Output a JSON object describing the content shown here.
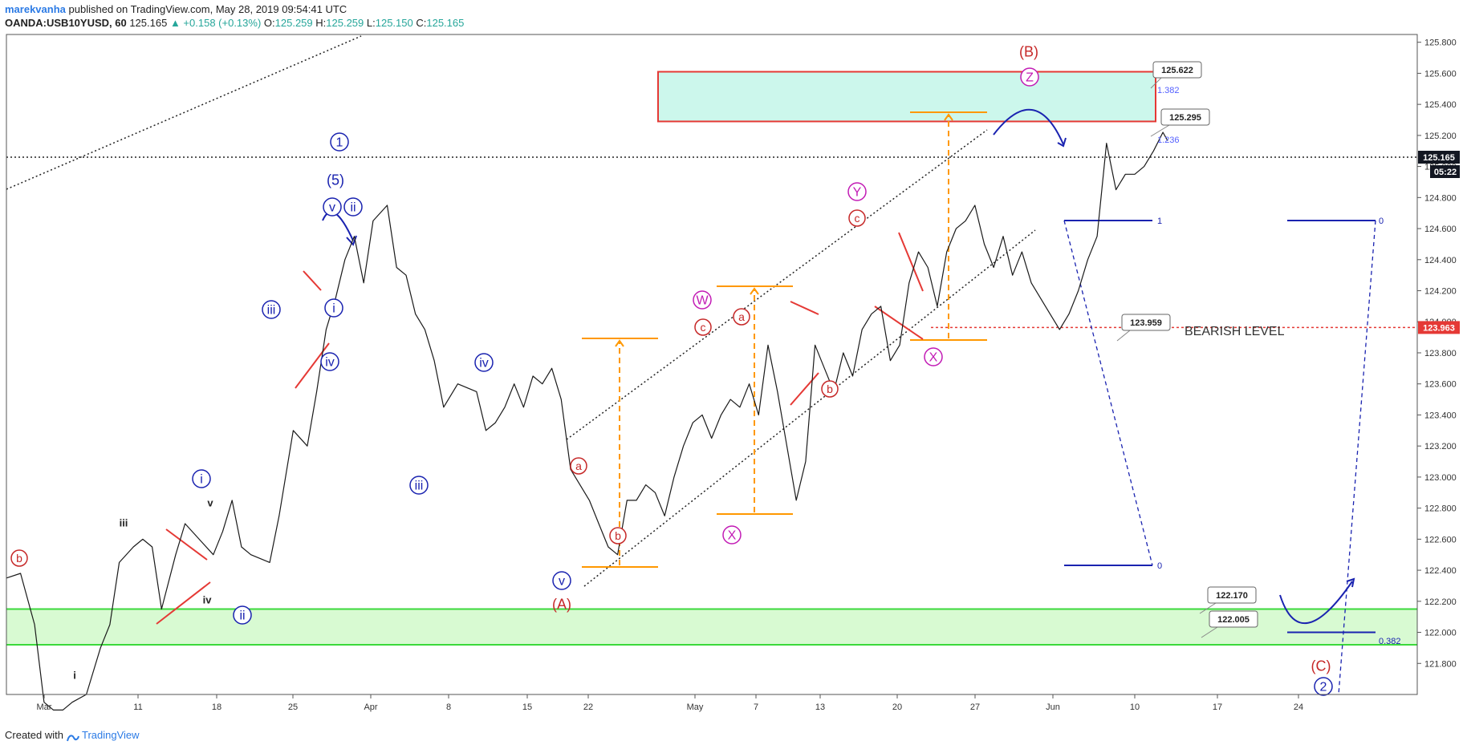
{
  "header": {
    "author": "marekvanha",
    "published": "published on TradingView.com, May 28, 2019 09:54:41 UTC",
    "symbol": "OANDA:USB10YUSD, 60",
    "last": "125.165",
    "change": "▲ +0.158 (+0.13%)",
    "o_label": "O:",
    "o": "125.259",
    "h_label": "H:",
    "h": "125.259",
    "l_label": "L:",
    "l": "125.150",
    "c_label": "C:",
    "c": "125.165"
  },
  "footer": {
    "created": "Created with",
    "brand": "TradingView"
  },
  "colors": {
    "bearish": "#e53935",
    "bullish": "#26a69a",
    "wave_blue": "#1a23b0",
    "wave_red": "#c62828",
    "wave_magenta": "#c21bb5",
    "fib_orange": "#ff9800",
    "target_zone": "#ccf7ec",
    "support_zone": "#d8fad2",
    "zone_red": "#e53935",
    "zone_green": "#3bd93b"
  },
  "chart_data": {
    "type": "line",
    "series": [
      {
        "x_unit": "trading day index (hourly bars, sampled)",
        "values": [
          [
            0,
            122.35
          ],
          [
            1.5,
            122.38
          ],
          [
            3,
            122.05
          ],
          [
            4,
            121.55
          ],
          [
            5,
            121.5
          ],
          [
            6,
            121.5
          ],
          [
            7,
            121.55
          ],
          [
            8.5,
            121.6
          ],
          [
            10,
            121.9
          ],
          [
            11,
            122.05
          ],
          [
            12,
            122.45
          ],
          [
            13.5,
            122.55
          ],
          [
            14.5,
            122.6
          ],
          [
            15.5,
            122.55
          ],
          [
            16.5,
            122.15
          ],
          [
            18,
            122.5
          ],
          [
            19,
            122.7
          ],
          [
            20.5,
            122.6
          ],
          [
            22,
            122.5
          ],
          [
            23,
            122.65
          ],
          [
            24,
            122.85
          ],
          [
            25,
            122.55
          ],
          [
            26,
            122.5
          ],
          [
            28,
            122.45
          ],
          [
            29,
            122.75
          ],
          [
            30.5,
            123.3
          ],
          [
            32,
            123.2
          ],
          [
            33,
            123.55
          ],
          [
            34,
            123.95
          ],
          [
            35,
            124.15
          ],
          [
            36,
            124.4
          ],
          [
            37,
            124.55
          ],
          [
            38,
            124.25
          ],
          [
            39,
            124.65
          ],
          [
            40.5,
            124.75
          ],
          [
            41.5,
            124.35
          ],
          [
            42.5,
            124.3
          ],
          [
            43.5,
            124.05
          ],
          [
            44.5,
            123.95
          ],
          [
            45.5,
            123.75
          ],
          [
            46.5,
            123.45
          ],
          [
            48,
            123.6
          ],
          [
            50,
            123.55
          ],
          [
            51,
            123.3
          ],
          [
            52,
            123.35
          ],
          [
            53,
            123.45
          ],
          [
            54,
            123.6
          ],
          [
            55,
            123.45
          ],
          [
            56,
            123.65
          ],
          [
            57,
            123.6
          ],
          [
            58,
            123.7
          ],
          [
            59,
            123.5
          ],
          [
            60,
            123.05
          ],
          [
            61,
            122.95
          ],
          [
            62,
            122.85
          ],
          [
            63,
            122.7
          ],
          [
            64,
            122.55
          ],
          [
            65,
            122.5
          ],
          [
            66,
            122.85
          ],
          [
            67,
            122.85
          ],
          [
            68,
            122.95
          ],
          [
            69,
            122.9
          ],
          [
            70,
            122.75
          ],
          [
            71,
            123.0
          ],
          [
            72,
            123.2
          ],
          [
            73,
            123.35
          ],
          [
            74,
            123.4
          ],
          [
            75,
            123.25
          ],
          [
            76,
            123.4
          ],
          [
            77,
            123.5
          ],
          [
            78,
            123.45
          ],
          [
            79,
            123.6
          ],
          [
            80,
            123.4
          ],
          [
            81,
            123.85
          ],
          [
            82,
            123.55
          ],
          [
            83,
            123.2
          ],
          [
            84,
            122.85
          ],
          [
            85,
            123.1
          ],
          [
            86,
            123.85
          ],
          [
            87,
            123.7
          ],
          [
            88,
            123.55
          ],
          [
            89,
            123.8
          ],
          [
            90,
            123.65
          ],
          [
            91,
            123.95
          ],
          [
            92,
            124.05
          ],
          [
            93,
            124.1
          ],
          [
            94,
            123.75
          ],
          [
            95,
            123.85
          ],
          [
            96,
            124.25
          ],
          [
            97,
            124.45
          ],
          [
            98,
            124.35
          ],
          [
            99,
            124.1
          ],
          [
            100,
            124.45
          ],
          [
            101,
            124.6
          ],
          [
            102,
            124.65
          ],
          [
            103,
            124.75
          ],
          [
            104,
            124.5
          ],
          [
            105,
            124.35
          ],
          [
            106,
            124.55
          ],
          [
            107,
            124.3
          ],
          [
            108,
            124.45
          ],
          [
            109,
            124.25
          ],
          [
            110,
            124.15
          ],
          [
            111,
            124.05
          ],
          [
            112,
            123.95
          ],
          [
            113,
            124.05
          ],
          [
            114,
            124.2
          ],
          [
            115,
            124.4
          ],
          [
            116,
            124.55
          ],
          [
            117,
            125.15
          ],
          [
            118,
            124.85
          ],
          [
            119,
            124.95
          ],
          [
            120,
            124.95
          ],
          [
            121,
            125.0
          ],
          [
            122,
            125.1
          ],
          [
            123,
            125.22
          ],
          [
            123.5,
            125.165
          ]
        ]
      }
    ],
    "ylim": [
      121.6,
      125.85
    ],
    "y_ticks": [
      "125.800",
      "125.600",
      "125.400",
      "125.200",
      "125.000",
      "124.800",
      "124.600",
      "124.400",
      "124.200",
      "124.000",
      "123.800",
      "123.600",
      "123.400",
      "123.200",
      "123.000",
      "122.800",
      "122.600",
      "122.400",
      "122.200",
      "122.000",
      "121.800"
    ],
    "x_ticks": [
      "Mar",
      "11",
      "18",
      "25",
      "Apr",
      "8",
      "15",
      "22",
      "May",
      "7",
      "13",
      "20",
      "27",
      "Jun",
      "10",
      "17",
      "24"
    ],
    "price_tag": {
      "value": "125.165",
      "time": "05:22"
    },
    "bearish_tag": "123.963",
    "bearish_label": "BEARISH LEVEL",
    "callouts": [
      {
        "text": "125.622"
      },
      {
        "text": "125.295"
      },
      {
        "text": "123.959"
      },
      {
        "text": "122.170"
      },
      {
        "text": "122.005"
      }
    ],
    "fib_labels": [
      {
        "text": "1.382"
      },
      {
        "text": "1.236"
      },
      {
        "text": "1"
      },
      {
        "text": "0"
      },
      {
        "text": "0"
      },
      {
        "text": "0"
      },
      {
        "text": "0.382"
      }
    ],
    "wave_labels": [
      {
        "text": "1",
        "style": "circle-blue"
      },
      {
        "text": "(5)",
        "style": "plain-blue"
      },
      {
        "text": "v",
        "style": "circle-blue"
      },
      {
        "text": "ii",
        "style": "circle-blue"
      },
      {
        "text": "iii",
        "style": "circle-blue"
      },
      {
        "text": "i",
        "style": "circle-blue"
      },
      {
        "text": "iv",
        "style": "circle-blue"
      },
      {
        "text": "i",
        "style": "circle-blue"
      },
      {
        "text": "ii",
        "style": "circle-blue"
      },
      {
        "text": "iii",
        "style": "circle-blue"
      },
      {
        "text": "iv",
        "style": "circle-blue"
      },
      {
        "text": "v",
        "style": "circle-blue"
      },
      {
        "text": "b",
        "style": "circle-red"
      },
      {
        "text": "iii",
        "style": "plain-black"
      },
      {
        "text": "iv",
        "style": "plain-black"
      },
      {
        "text": "v",
        "style": "plain-black"
      },
      {
        "text": "i",
        "style": "plain-black"
      },
      {
        "text": "a",
        "style": "circle-red"
      },
      {
        "text": "b",
        "style": "circle-red"
      },
      {
        "text": "(A)",
        "style": "plain-red"
      },
      {
        "text": "c",
        "style": "circle-red"
      },
      {
        "text": "W",
        "style": "circle-magenta"
      },
      {
        "text": "X",
        "style": "circle-magenta"
      },
      {
        "text": "a",
        "style": "circle-red"
      },
      {
        "text": "b",
        "style": "circle-red"
      },
      {
        "text": "c",
        "style": "circle-red"
      },
      {
        "text": "Y",
        "style": "circle-magenta"
      },
      {
        "text": "X",
        "style": "circle-magenta"
      },
      {
        "text": "Z",
        "style": "circle-magenta"
      },
      {
        "text": "(B)",
        "style": "plain-red"
      },
      {
        "text": "(C)",
        "style": "plain-red"
      },
      {
        "text": "2",
        "style": "circle-blue"
      }
    ]
  }
}
